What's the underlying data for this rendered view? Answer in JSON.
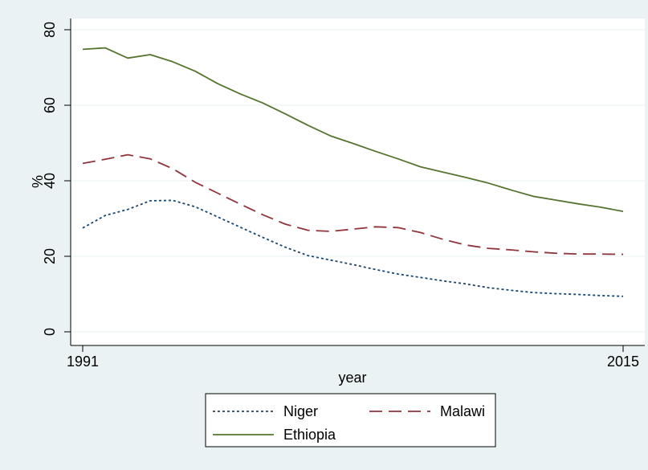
{
  "chart_data": {
    "type": "line",
    "xlabel": "year",
    "ylabel": "%",
    "xlim": [
      1991,
      2015
    ],
    "ylim": [
      0,
      80
    ],
    "xticks": [
      "1991",
      "2015"
    ],
    "yticks": [
      "0",
      "20",
      "40",
      "60",
      "80"
    ],
    "grid": true,
    "legend_position": "bottom",
    "x": [
      1991,
      1992,
      1993,
      1994,
      1995,
      1996,
      1997,
      1998,
      1999,
      2000,
      2001,
      2002,
      2003,
      2004,
      2005,
      2006,
      2007,
      2008,
      2009,
      2010,
      2011,
      2012,
      2013,
      2014,
      2015
    ],
    "series": [
      {
        "name": "Niger",
        "style": "dotted",
        "color": "#1a476f",
        "values": [
          27.5,
          30.8,
          32.4,
          34.7,
          34.8,
          33.1,
          30.4,
          27.7,
          25.0,
          22.4,
          20.2,
          19.0,
          17.8,
          16.5,
          15.3,
          14.4,
          13.5,
          12.7,
          11.7,
          11.0,
          10.4,
          10.1,
          9.9,
          9.6,
          9.4
        ]
      },
      {
        "name": "Malawi",
        "style": "dashed",
        "color": "#90353b",
        "values": [
          44.6,
          45.7,
          46.9,
          45.8,
          43.2,
          39.6,
          36.7,
          33.8,
          31.0,
          28.5,
          26.9,
          26.6,
          27.2,
          27.8,
          27.6,
          26.3,
          24.5,
          23.0,
          22.1,
          21.7,
          21.2,
          20.8,
          20.6,
          20.6,
          20.5
        ]
      },
      {
        "name": "Ethiopia",
        "style": "solid",
        "color": "#55752f",
        "values": [
          74.8,
          75.2,
          72.5,
          73.4,
          71.5,
          69.0,
          65.7,
          63.0,
          60.6,
          57.7,
          54.7,
          51.9,
          49.9,
          47.8,
          45.8,
          43.7,
          42.3,
          40.9,
          39.4,
          37.6,
          35.9,
          34.9,
          33.9,
          33.0,
          31.9
        ]
      }
    ]
  }
}
